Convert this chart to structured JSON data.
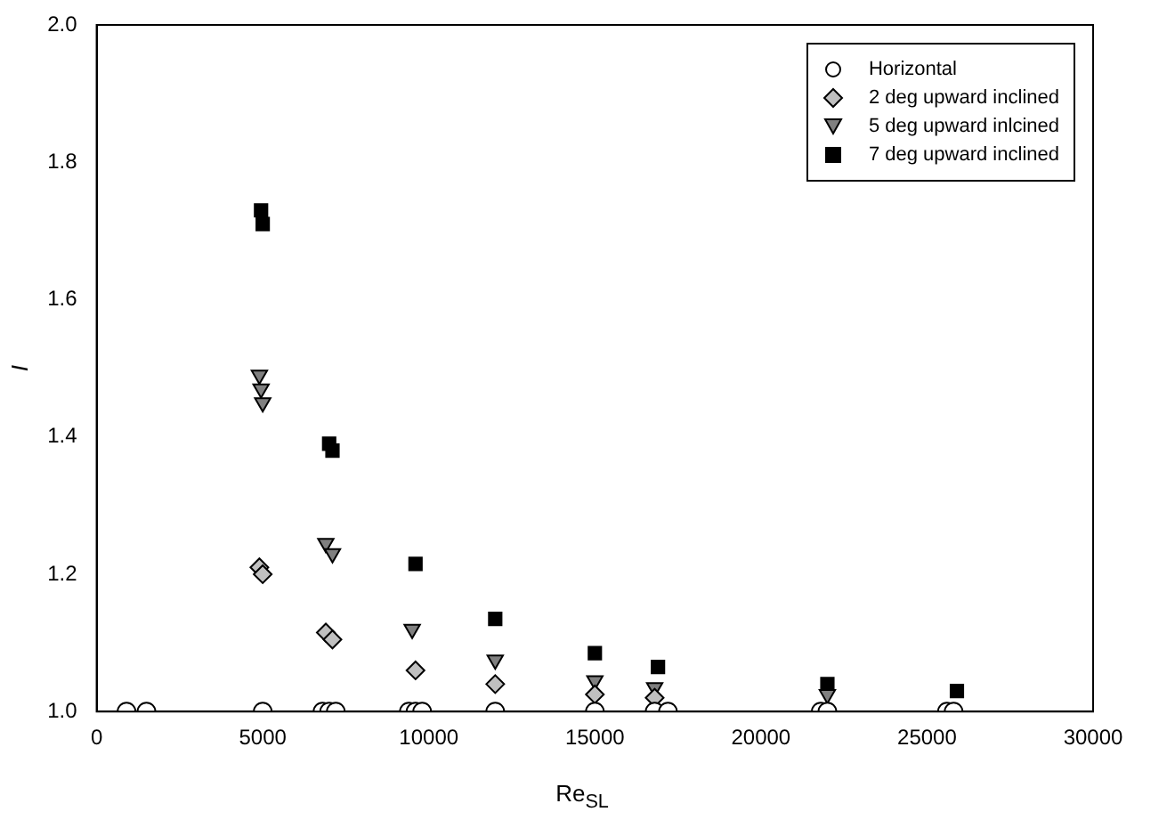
{
  "chart_data": {
    "type": "scatter",
    "xlabel": "Re$_{SL}$",
    "ylabel": "I",
    "xlim": [
      0,
      30000
    ],
    "xticks": [
      0,
      5000,
      10000,
      15000,
      20000,
      25000,
      30000
    ],
    "ylim": [
      1.0,
      2.0
    ],
    "yticks": [
      {
        "value": 1.0,
        "label": "1.0"
      },
      {
        "value": 1.2,
        "label": "1.2"
      },
      {
        "value": 1.4,
        "label": "1.4"
      },
      {
        "value": 1.6,
        "label": "1.6"
      },
      {
        "value": 1.8,
        "label": "1.8"
      },
      {
        "value": 2.0,
        "label": "2.0"
      }
    ],
    "grid": false,
    "legend": "top right",
    "series": [
      {
        "name": "Horizontal",
        "color": "#ffffff",
        "marker": "circle",
        "x": [
          900,
          1500,
          5000,
          6800,
          7000,
          7200,
          9400,
          9600,
          9800,
          12000,
          15000,
          16800,
          17200,
          21800,
          22000,
          25600,
          25800
        ],
        "values": [
          1,
          1,
          1,
          1,
          1,
          1,
          1,
          1,
          1,
          1,
          1,
          1,
          1,
          1,
          1,
          1,
          1
        ]
      },
      {
        "name": "2 deg upward inclined",
        "color": "#c0c0c0",
        "marker": "diamond",
        "x": [
          4900,
          5000,
          6900,
          7100,
          9600,
          12000,
          15000,
          16800
        ],
        "values": [
          1.21,
          1.2,
          1.115,
          1.105,
          1.06,
          1.04,
          1.025,
          1.02
        ]
      },
      {
        "name": "5 deg upward inlcined",
        "color": "#808080",
        "marker": "triangle",
        "x": [
          4900,
          4950,
          5000,
          6900,
          7100,
          9500,
          12000,
          15000,
          16800,
          22000
        ],
        "values": [
          1.49,
          1.47,
          1.45,
          1.245,
          1.23,
          1.12,
          1.075,
          1.045,
          1.035,
          1.025
        ]
      },
      {
        "name": "7 deg upward inclined",
        "color": "#000000",
        "marker": "square",
        "x": [
          4950,
          5000,
          7000,
          7100,
          9600,
          12000,
          15000,
          16900,
          22000,
          25900
        ],
        "values": [
          1.73,
          1.71,
          1.39,
          1.38,
          1.215,
          1.135,
          1.085,
          1.065,
          1.04,
          1.03
        ]
      }
    ]
  }
}
